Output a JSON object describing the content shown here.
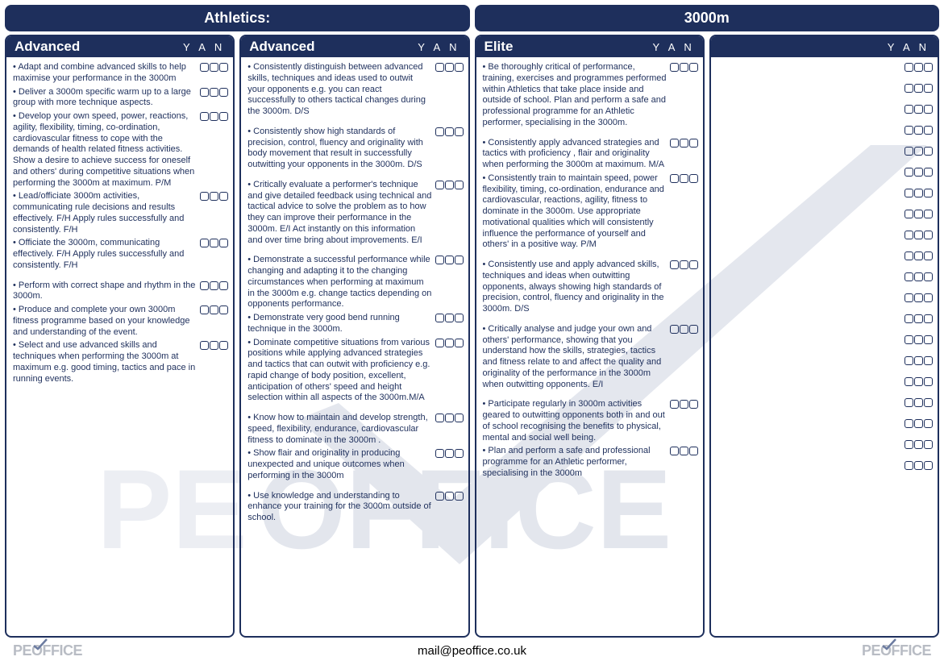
{
  "colors": {
    "brand": "#1e2f5c",
    "white": "#ffffff",
    "logo_gray": "#b8bcc4",
    "watermark": "#a8b2c7"
  },
  "header": {
    "left": "Athletics:",
    "right": "3000m"
  },
  "yan_label": "Y A N",
  "columns": [
    {
      "title": "Advanced",
      "groups": [
        [
          "Adapt and combine advanced skills to help maximise your performance in the 3000m",
          "Deliver a 3000m specific warm up to a large group with more technique aspects.",
          "Develop your own speed, power, reactions, agility, flexibility, timing, co-ordination, cardiovascular fitness to cope with the demands of health related fitness activities. Show a desire to achieve success for oneself and others' during competitive situations when performing the 3000m at maximum. P/M",
          "Lead/officiate 3000m activities, communicating rule decisions and results effectively. F/H Apply rules successfully and consistently. F/H",
          "Officiate the 3000m, communicating effectively. F/H Apply rules successfully and consistently. F/H"
        ],
        [
          "Perform with correct shape and rhythm in the 3000m.",
          "Produce and complete your own 3000m fitness programme based on your knowledge and understanding of the event.",
          "Select and use advanced skills and techniques when performing the 3000m at maximum e.g. good timing, tactics and pace in running events."
        ]
      ]
    },
    {
      "title": "Advanced",
      "groups": [
        [
          "Consistently distinguish between advanced skills, techniques and ideas used to outwit your opponents e.g. you can react successfully to others tactical changes during the 3000m. D/S"
        ],
        [
          "Consistently show high standards of precision, control, fluency and originality with body movement that result in successfully outwitting your opponents in the 3000m. D/S"
        ],
        [
          "Critically evaluate a performer's technique and give detailed feedback using technical and tactical advice to solve the problem as to how they can improve their performance in the 3000m. E/I Act instantly on this information and over time bring about improvements. E/I"
        ],
        [
          "Demonstrate a successful performance while changing and adapting it to the changing circumstances when performing at maximum in the 3000m e.g. change tactics depending on opponents performance.",
          "Demonstrate very good bend running technique in the 3000m.",
          "Dominate competitive situations from various positions while applying advanced strategies and tactics that can outwit with proficiency e.g. rapid change of body position, excellent, anticipation of others' speed and height selection within all aspects of the 3000m.M/A"
        ],
        [
          "Know how to maintain and develop strength, speed, flexibility, endurance, cardiovascular fitness to dominate in the 3000m .",
          "Show flair and originality in producing unexpected and unique outcomes when performing in the 3000m"
        ],
        [
          "Use knowledge and understanding to enhance your training for the 3000m outside of school."
        ]
      ]
    },
    {
      "title": "Elite",
      "groups": [
        [
          "Be thoroughly critical of performance, training, exercises and programmes performed within Athletics that take place inside and outside of school. Plan and perform a safe and professional programme for an Athletic performer, specialising in the 3000m."
        ],
        [
          "Consistently apply advanced strategies and tactics with proficiency , flair and originality when performing the 3000m at maximum. M/A",
          "Consistently train to maintain speed, power flexibility, timing, co-ordination, endurance and cardiovascular, reactions, agility, fitness to dominate in the 3000m. Use appropriate motivational qualities which will consistently influence the performance of yourself and others' in a positive way. P/M"
        ],
        [
          "Consistently use and apply advanced skills, techniques and ideas when outwitting opponents, always showing high standards of precision, control, fluency and originality in the 3000m. D/S"
        ],
        [
          "Critically analyse and judge your own and others' performance, showing that you understand how the skills, strategies, tactics and fitness relate to and affect the quality and originality of the performance in the 3000m when outwitting opponents. E/I"
        ],
        [
          "Participate regularly in 3000m activities geared to outwitting opponents both in and out of school recognising the benefits to physical, mental and social well being.",
          "Plan and perform a safe and professional programme for an Athletic performer, specialising in the 3000m"
        ]
      ]
    },
    {
      "title": "",
      "blank_rows": 20
    }
  ],
  "footer": {
    "logo_pe": "PE",
    "logo_office": "OFFICE",
    "email": "mail@peoffice.co.uk"
  }
}
